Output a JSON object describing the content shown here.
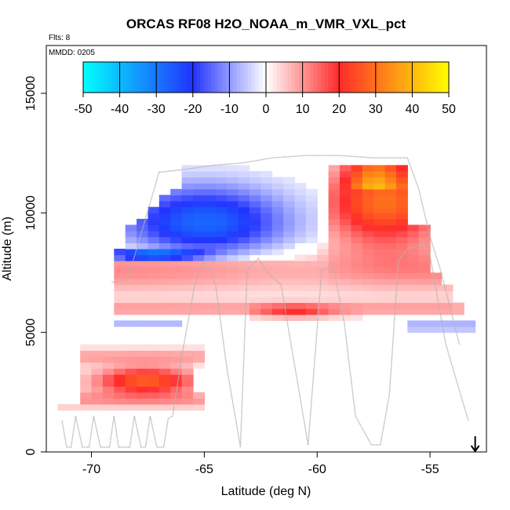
{
  "chart_data": {
    "type": "heatmap",
    "title": "ORCAS RF08 H2O_NOAA_m_VMR_VXL_pct",
    "subtitle_flights": "Flts: 8",
    "subtitle_date": "MMDD: 0205",
    "xlabel": "Latitude (deg N)",
    "ylabel": "Altitude (m)",
    "xlim": [
      -72,
      -52.5
    ],
    "ylim": [
      0,
      17000
    ],
    "x_ticks": [
      -70,
      -65,
      -60,
      -55
    ],
    "y_ticks": [
      0,
      5000,
      10000,
      15000
    ],
    "colorbar": {
      "ticks": [
        -50,
        -40,
        -30,
        -20,
        -10,
        0,
        10,
        20,
        30,
        40,
        50
      ],
      "range": [
        -50,
        50
      ],
      "low_color": "#00ffff",
      "mid_low_color": "#2233ff",
      "mid_color": "#ffffff",
      "mid_high_color": "#ff2a2a",
      "high_color": "#ffff00"
    },
    "arrow_marker_latitude": -53,
    "flight_track": [
      [
        -71.3,
        1300
      ],
      [
        -71.1,
        200
      ],
      [
        -70.9,
        200
      ],
      [
        -70.7,
        1500
      ],
      [
        -70.4,
        200
      ],
      [
        -70.1,
        200
      ],
      [
        -69.9,
        1500
      ],
      [
        -69.6,
        200
      ],
      [
        -69.2,
        200
      ],
      [
        -69.0,
        1500
      ],
      [
        -68.8,
        200
      ],
      [
        -68.3,
        200
      ],
      [
        -68.1,
        1500
      ],
      [
        -67.8,
        200
      ],
      [
        -67.6,
        200
      ],
      [
        -67.4,
        1500
      ],
      [
        -67.1,
        200
      ],
      [
        -66.8,
        200
      ],
      [
        -66.6,
        1400
      ],
      [
        -66.4,
        1500
      ],
      [
        -66.0,
        4000
      ],
      [
        -65.4,
        7100
      ],
      [
        -65.0,
        8000
      ],
      [
        -64.5,
        7000
      ],
      [
        -64.0,
        3500
      ],
      [
        -63.4,
        200
      ],
      [
        -63.1,
        7600
      ],
      [
        -62.6,
        8100
      ],
      [
        -62.2,
        7500
      ],
      [
        -61.6,
        7000
      ],
      [
        -61.3,
        5300
      ],
      [
        -60.4,
        300
      ],
      [
        -59.8,
        7600
      ],
      [
        -59.3,
        7800
      ],
      [
        -58.8,
        5400
      ],
      [
        -58.3,
        1500
      ],
      [
        -57.6,
        300
      ],
      [
        -57.2,
        300
      ],
      [
        -56.8,
        2400
      ],
      [
        -56.4,
        8000
      ],
      [
        -56.0,
        8500
      ],
      [
        -55.6,
        8600
      ],
      [
        -55.3,
        8700
      ],
      [
        -55.0,
        8200
      ],
      [
        -54.3,
        4500
      ],
      [
        -53.3,
        1300
      ]
    ],
    "flight_track_upper": [
      [
        -69.1,
        7100
      ],
      [
        -68.4,
        7200
      ],
      [
        -67.0,
        11700
      ],
      [
        -66.0,
        11800
      ],
      [
        -64.5,
        12000
      ],
      [
        -63.2,
        12100
      ],
      [
        -62.0,
        12300
      ],
      [
        -60.5,
        12400
      ],
      [
        -59.0,
        12400
      ],
      [
        -57.5,
        12300
      ],
      [
        -56.5,
        12300
      ],
      [
        -56.0,
        12300
      ],
      [
        -55.5,
        11000
      ],
      [
        -55.0,
        9000
      ],
      [
        -54.5,
        7500
      ],
      [
        -53.7,
        4500
      ]
    ],
    "series": [
      {
        "name": "",
        "lat_range": [
          -71.5,
          -53.2
        ],
        "alt": 3000,
        "band_height": 2500,
        "anomaly_profile": "positive_core_low"
      },
      {
        "name": "",
        "lat_range": [
          -68.3,
          -58
        ],
        "alt": 8000,
        "band_height": 1200,
        "anomaly_profile": "negative_upper_left"
      },
      {
        "name": "",
        "lat_range": [
          -60,
          -54
        ],
        "alt": 10500,
        "band_height": 2000,
        "anomaly_profile": "positive_upper_right"
      }
    ]
  }
}
